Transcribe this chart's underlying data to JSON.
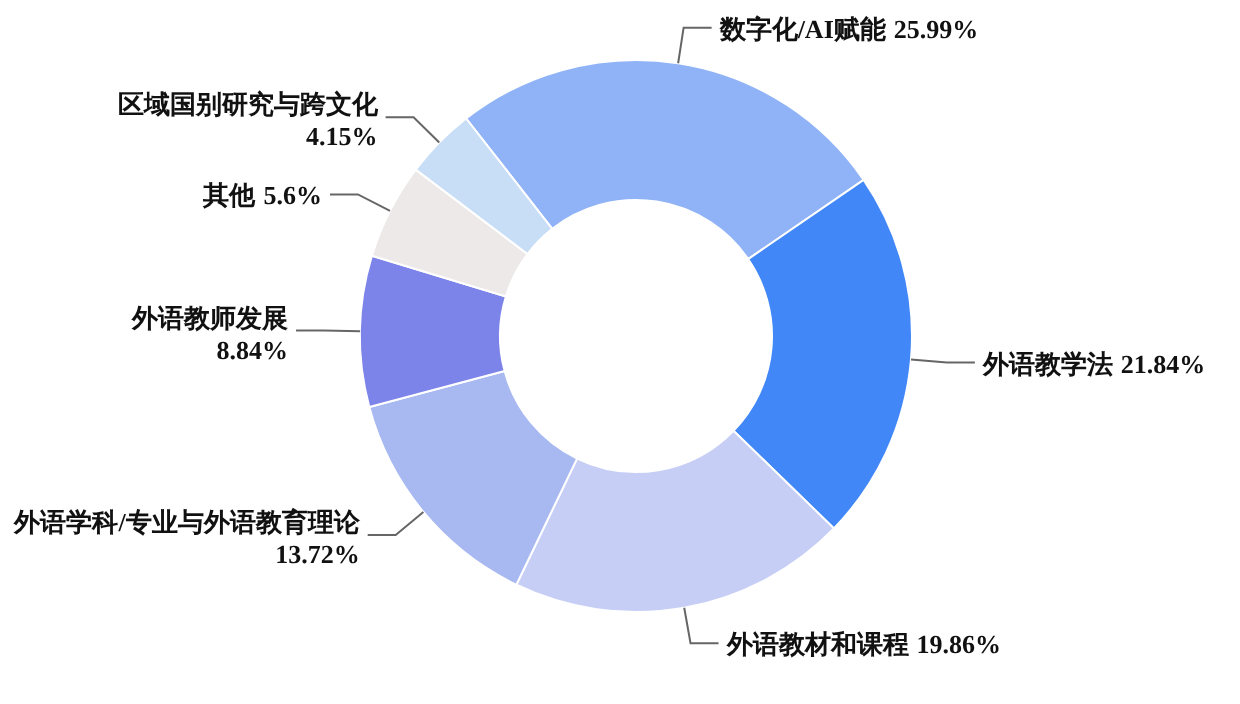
{
  "chart_data": {
    "type": "donut",
    "categories": [
      "数字化/AI赋能",
      "外语教学法",
      "外语教材和课程",
      "外语学科/专业与外语教育理论",
      "外语教师发展",
      "其他",
      "区域国别研究与跨文化"
    ],
    "values": [
      25.99,
      21.84,
      19.86,
      13.72,
      8.84,
      5.6,
      4.15
    ],
    "value_labels": [
      "25.99%",
      "21.84%",
      "19.86%",
      "13.72%",
      "8.84%",
      "5.6%",
      "4.15%"
    ],
    "colors": [
      "#8fb3f6",
      "#4287f7",
      "#c6cef6",
      "#a8b8f1",
      "#7c84e9",
      "#eee9e9",
      "#c8ddf6"
    ]
  }
}
